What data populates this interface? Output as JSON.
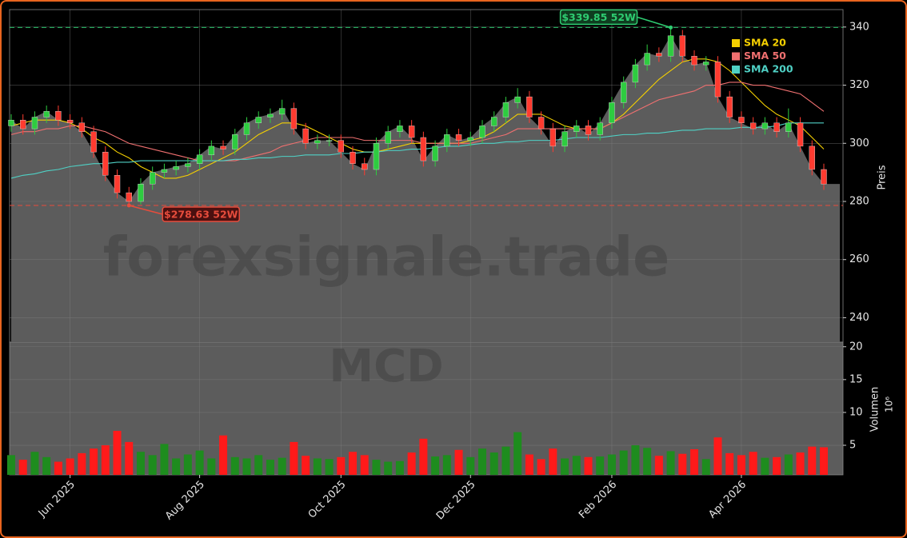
{
  "chart_data": [
    {
      "type": "candlestick",
      "watermark": "forexsignale.trade",
      "categories": [
        null,
        null,
        null,
        null,
        null,
        "Jun 2025",
        null,
        null,
        null,
        null,
        null,
        null,
        null,
        null,
        null,
        null,
        "Aug 2025",
        null,
        null,
        null,
        null,
        null,
        null,
        null,
        null,
        null,
        null,
        null,
        "Oct 2025",
        null,
        null,
        null,
        null,
        null,
        null,
        null,
        null,
        null,
        null,
        "Dec 2025",
        null,
        null,
        null,
        null,
        null,
        null,
        null,
        null,
        null,
        null,
        null,
        "Feb 2026",
        null,
        null,
        null,
        null,
        null,
        null,
        null,
        null,
        null,
        null,
        "Apr 2026",
        null,
        null,
        null,
        null,
        null,
        null,
        null
      ],
      "open": [
        306,
        308,
        305,
        309,
        311,
        308,
        307,
        304,
        297,
        289,
        283,
        280,
        286,
        290,
        291,
        292,
        293,
        296,
        299,
        298,
        303,
        307,
        309,
        310,
        312,
        305,
        300,
        301,
        301,
        297,
        293,
        291,
        300,
        304,
        306,
        302,
        294,
        299,
        303,
        301,
        302,
        306,
        309,
        314,
        316,
        309,
        305,
        299,
        304,
        306,
        303,
        307,
        314,
        321,
        327,
        331,
        330,
        337,
        330,
        327,
        328,
        316,
        309,
        307,
        305,
        307,
        304,
        307,
        299,
        291
      ],
      "high": [
        310,
        310,
        311,
        313,
        313,
        310,
        309,
        306,
        299,
        291,
        285,
        288,
        292,
        293,
        294,
        295,
        298,
        301,
        301,
        305,
        309,
        311,
        312,
        315,
        314,
        307,
        303,
        303,
        303,
        299,
        295,
        302,
        306,
        308,
        308,
        304,
        301,
        305,
        305,
        304,
        308,
        311,
        316,
        319,
        318,
        311,
        307,
        306,
        308,
        308,
        309,
        316,
        323,
        329,
        334,
        333,
        339.85,
        339,
        332,
        330,
        330,
        318,
        311,
        309,
        309,
        309,
        312,
        309,
        301,
        293
      ],
      "low": [
        304,
        303,
        303,
        307,
        306,
        305,
        302,
        295,
        287,
        281,
        278.63,
        279,
        284,
        288,
        289,
        290,
        291,
        294,
        296,
        296,
        301,
        305,
        307,
        308,
        303,
        298,
        298,
        299,
        295,
        291,
        289,
        289,
        298,
        302,
        300,
        292,
        292,
        297,
        299,
        299,
        300,
        304,
        307,
        312,
        307,
        303,
        297,
        297,
        302,
        301,
        301,
        305,
        312,
        319,
        325,
        328,
        328,
        328,
        325,
        325,
        314,
        307,
        305,
        303,
        303,
        302,
        302,
        297,
        289,
        284
      ],
      "close": [
        308,
        305,
        309,
        311,
        308,
        307,
        304,
        297,
        289,
        283,
        280,
        286,
        290,
        291,
        292,
        293,
        296,
        299,
        298,
        303,
        307,
        309,
        310,
        312,
        305,
        300,
        301,
        301,
        297,
        293,
        291,
        300,
        304,
        306,
        302,
        294,
        299,
        303,
        301,
        302,
        306,
        309,
        314,
        316,
        309,
        305,
        299,
        304,
        306,
        303,
        307,
        314,
        321,
        327,
        331,
        330,
        337,
        330,
        327,
        328,
        316,
        309,
        307,
        305,
        307,
        304,
        307,
        299,
        291,
        286
      ],
      "up_color": "#2ecc40",
      "down_color": "#ff3b30",
      "area_color": "#5c5c5c",
      "series": [
        {
          "name": "SMA 20",
          "color": "#f5d000",
          "values": [
            306,
            307,
            308,
            308,
            308,
            307,
            305,
            302,
            300,
            297,
            295,
            292,
            290,
            288,
            288,
            289,
            291,
            293,
            295,
            297,
            300,
            303,
            305,
            307,
            307,
            306,
            304,
            302,
            300,
            298,
            297,
            297,
            298,
            299,
            300,
            300,
            300,
            300,
            300,
            301,
            302,
            304,
            307,
            310,
            310,
            310,
            308,
            306,
            305,
            305,
            305,
            307,
            310,
            314,
            318,
            322,
            325,
            328,
            329,
            329,
            328,
            325,
            321,
            317,
            313,
            310,
            308,
            306,
            302,
            298
          ]
        },
        {
          "name": "SMA 50",
          "color": "#f07070",
          "values": [
            303,
            304,
            304,
            305,
            305,
            306,
            306,
            305,
            304,
            302,
            300,
            299,
            298,
            297,
            296,
            295,
            294,
            294,
            294,
            294,
            295,
            296,
            297,
            299,
            300,
            301,
            302,
            302,
            302,
            302,
            301,
            301,
            301,
            301,
            301,
            300,
            300,
            300,
            300,
            300,
            301,
            302,
            303,
            305,
            305,
            305,
            305,
            305,
            305,
            305,
            305,
            307,
            309,
            311,
            313,
            315,
            316,
            317,
            318,
            320,
            320,
            321,
            321,
            320,
            320,
            319,
            318,
            317,
            314,
            311
          ]
        },
        {
          "name": "SMA 200",
          "color": "#4fd1c5",
          "values": [
            288,
            289,
            289.5,
            290.5,
            291,
            292,
            292.5,
            293,
            293,
            293.5,
            293.5,
            294,
            294,
            294,
            294,
            294,
            294,
            294,
            294,
            294.5,
            294.5,
            295,
            295,
            295.5,
            295.5,
            296,
            296,
            296,
            296.5,
            296.5,
            297,
            297,
            297.5,
            297.5,
            298,
            298,
            298.5,
            299,
            299,
            299.5,
            300,
            300,
            300.5,
            300.5,
            301,
            301,
            301,
            301.5,
            302,
            302,
            302,
            302.5,
            303,
            303,
            303.5,
            303.5,
            304,
            304.5,
            304.5,
            305,
            305,
            305,
            305.5,
            305.5,
            305.5,
            306,
            307,
            307,
            307,
            307
          ]
        }
      ],
      "annotations": [
        {
          "value": 339.85,
          "label": "$339.85 52W",
          "color": "#2ecc71"
        },
        {
          "value": 278.63,
          "label": "$278.63 52W",
          "color": "#e74c3c"
        }
      ],
      "ylim": [
        231.6,
        346
      ],
      "yticks": [
        240,
        260,
        280,
        300,
        320,
        340
      ],
      "y_label": "Preis",
      "grid": true,
      "legend": "upper right"
    },
    {
      "type": "bar",
      "watermark": "MCD",
      "values": [
        3.5,
        2.8,
        4.0,
        3.2,
        2.5,
        3.0,
        3.8,
        4.5,
        5.0,
        7.2,
        5.5,
        4.0,
        3.5,
        5.2,
        3.0,
        3.6,
        4.2,
        3.0,
        6.5,
        3.2,
        3.0,
        3.5,
        2.8,
        3.1,
        5.5,
        3.4,
        3.0,
        2.9,
        3.2,
        4.0,
        3.5,
        2.8,
        2.5,
        2.6,
        3.9,
        6.0,
        3.3,
        3.5,
        4.3,
        3.2,
        4.5,
        3.9,
        4.8,
        7.0,
        3.6,
        2.9,
        4.5,
        3.0,
        3.4,
        3.2,
        3.3,
        3.6,
        4.2,
        5.0,
        4.6,
        3.4,
        4.1,
        3.7,
        4.4,
        2.9,
        6.2,
        3.8,
        3.5,
        4.0,
        3.1,
        3.2,
        3.6,
        3.9,
        4.8,
        4.7
      ],
      "ylim": [
        0.5,
        20.7
      ],
      "yticks": [
        5,
        10,
        15,
        20
      ],
      "y_label": "Volumen",
      "offset_label": "10⁶",
      "grid": true
    }
  ]
}
